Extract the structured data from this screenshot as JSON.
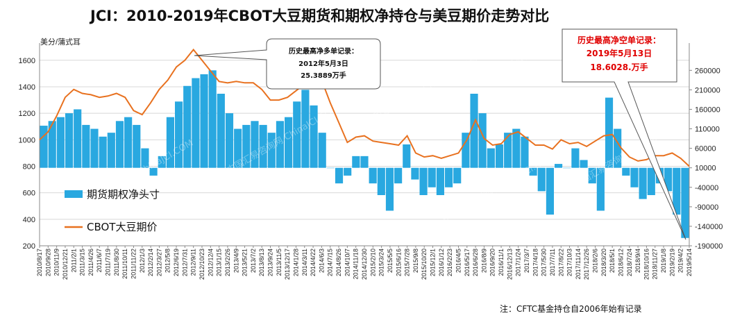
{
  "chart_data": {
    "type": "bar+line",
    "title": "JCI：2010-2019年CBOT大豆期货和期权净持仓与美豆期价走势对比",
    "left_axis": {
      "unit_label": "美分/蒲式耳",
      "ticks": [
        200,
        400,
        600,
        800,
        1000,
        1200,
        1400,
        1600
      ],
      "ylim": [
        200,
        1730
      ]
    },
    "right_axis": {
      "ticks": [
        -190000,
        -140000,
        -90000,
        -40000,
        10000,
        60000,
        110000,
        160000,
        210000,
        260000
      ],
      "ylim": [
        -190000,
        330000
      ]
    },
    "x_ticks": [
      "2010/8/17",
      "2010/9/28",
      "2010/11/9",
      "2010/12/21",
      "2011/2/1",
      "2011/3/15",
      "2011/4/26",
      "2011/6/7",
      "2011/7/19",
      "2011/8/30",
      "2011/10/11",
      "2011/11/22",
      "2012/1/3",
      "2012/2/14",
      "2012/3/27",
      "2012/5/8",
      "2012/6/19",
      "2012/7/31",
      "2012/9/11",
      "2012/10/23",
      "2012/12/4",
      "2013/1/15",
      "2013/2/26",
      "2013/4/9",
      "2013/5/21",
      "2013/7/2",
      "2013/8/13",
      "2013/9/24",
      "2013/11/5",
      "2013/12/17",
      "2014/1/28",
      "2014/3/11",
      "2014/4/22",
      "2014/6/3",
      "2014/7/15",
      "2014/8/26",
      "2014/10/7",
      "2014/11/18",
      "2014/12/30",
      "2015/2/10",
      "2015/3/24",
      "2015/5/5",
      "2015/6/16",
      "2015/7/28",
      "2015/9/8",
      "2015/10/20",
      "2015/12/1",
      "2016/1/12",
      "2016/2/23",
      "2016/4/5",
      "2016/5/17",
      "2016/6/28",
      "2016/8/9",
      "2016/9/20",
      "2016/11/1",
      "2016/12/13",
      "2017/1/24",
      "2017/3/7",
      "2017/4/18",
      "2017/5/30",
      "2017/7/11",
      "2017/8/22",
      "2017/10/3",
      "2017/11/14",
      "2017/12/26",
      "2018/2/6",
      "2018/3/20",
      "2018/5/1",
      "2018/6/12",
      "2018/7/24",
      "2018/9/4",
      "2018/10/16",
      "2018/11/27",
      "2019/1/8",
      "2019/2/19",
      "2019/4/2",
      "2019/5/14"
    ],
    "series": [
      {
        "name": "期货期权净头寸",
        "kind": "bar",
        "axis": "right",
        "color": "#29a8e0",
        "values": [
          118000,
          130000,
          140000,
          150000,
          160000,
          120000,
          110000,
          90000,
          100000,
          130000,
          140000,
          120000,
          60000,
          -10000,
          40000,
          140000,
          180000,
          220000,
          240000,
          250000,
          260000,
          200000,
          150000,
          110000,
          120000,
          130000,
          120000,
          100000,
          130000,
          140000,
          180000,
          210000,
          170000,
          100000,
          10000,
          -30000,
          -10000,
          40000,
          40000,
          -30000,
          -60000,
          -100000,
          -30000,
          70000,
          -20000,
          -60000,
          -40000,
          -60000,
          -40000,
          -30000,
          100000,
          200000,
          150000,
          60000,
          70000,
          100000,
          110000,
          90000,
          -10000,
          -50000,
          -110000,
          20000,
          10000,
          60000,
          30000,
          -30000,
          -100000,
          190000,
          110000,
          -10000,
          -40000,
          -70000,
          -60000,
          -30000,
          -50000,
          -110000,
          -170000
        ]
      },
      {
        "name": "CBOT大豆期价",
        "kind": "line",
        "axis": "left",
        "color": "#e8711f",
        "values": [
          1000,
          1060,
          1180,
          1320,
          1380,
          1350,
          1340,
          1320,
          1330,
          1350,
          1320,
          1220,
          1190,
          1280,
          1380,
          1450,
          1550,
          1600,
          1680,
          1600,
          1520,
          1440,
          1430,
          1440,
          1430,
          1430,
          1380,
          1300,
          1300,
          1320,
          1370,
          1420,
          1460,
          1450,
          1280,
          1130,
          980,
          1020,
          1030,
          990,
          980,
          970,
          960,
          1030,
          900,
          870,
          880,
          860,
          880,
          900,
          1000,
          1150,
          1010,
          960,
          970,
          1040,
          1060,
          1010,
          960,
          960,
          930,
          1000,
          970,
          980,
          950,
          990,
          1030,
          1040,
          940,
          870,
          840,
          850,
          880,
          880,
          900,
          860,
          800
        ]
      }
    ],
    "legend": [
      "期货期权净头寸",
      "CBOT大豆期价"
    ],
    "annotations": {
      "max_long": {
        "lines": [
          "历史最高净多单记录：",
          "2012年5月3日",
          "25.3889万手"
        ]
      },
      "max_short": {
        "lines": [
          "历史最高净空单记录：",
          "2019年5月13日",
          "18.6028.万手"
        ]
      }
    },
    "footnote": "注：CFTC基金持仓自2006年始有记录",
    "watermark": "中国汇易咨询网 ChinaJCI.COM"
  }
}
